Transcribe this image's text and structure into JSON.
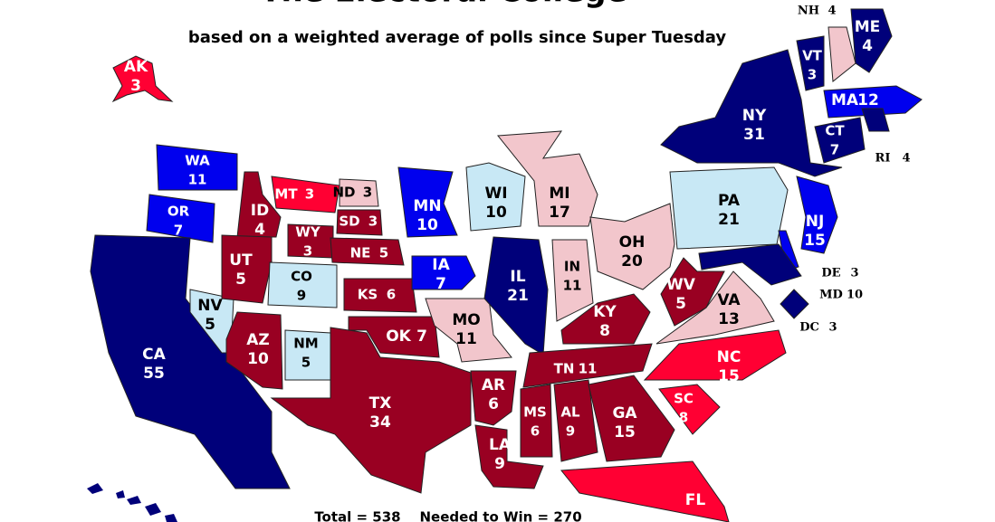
{
  "title": "The Electoral College",
  "subtitle": "based on a weighted average of polls since Super Tuesday",
  "footer": "Total = 538    Needed to Win = 270",
  "states": [
    {
      "abbr": "AK",
      "votes": 3,
      "color": "#ff0033"
    },
    {
      "abbr": "WA",
      "votes": 11,
      "color": "#0000ee"
    },
    {
      "abbr": "OR",
      "votes": 7,
      "color": "#0000ee"
    },
    {
      "abbr": "CA",
      "votes": 55,
      "color": "#00007a"
    },
    {
      "abbr": "NV",
      "votes": 5,
      "color": "#c8e8f5"
    },
    {
      "abbr": "ID",
      "votes": 4,
      "color": "#990022"
    },
    {
      "abbr": "MT",
      "votes": 3,
      "color": "#ff0033"
    },
    {
      "abbr": "WY",
      "votes": 3,
      "color": "#990022"
    },
    {
      "abbr": "UT",
      "votes": 5,
      "color": "#990022"
    },
    {
      "abbr": "CO",
      "votes": 9,
      "color": "#c8e8f5"
    },
    {
      "abbr": "AZ",
      "votes": 10,
      "color": "#990022"
    },
    {
      "abbr": "NM",
      "votes": 5,
      "color": "#c8e8f5"
    },
    {
      "abbr": "ND",
      "votes": 3,
      "color": "#f2c6cc"
    },
    {
      "abbr": "SD",
      "votes": 3,
      "color": "#990022"
    },
    {
      "abbr": "NE",
      "votes": 5,
      "color": "#990022"
    },
    {
      "abbr": "KS",
      "votes": 6,
      "color": "#990022"
    },
    {
      "abbr": "OK",
      "votes": 7,
      "color": "#990022"
    },
    {
      "abbr": "TX",
      "votes": 34,
      "color": "#990022"
    },
    {
      "abbr": "MN",
      "votes": 10,
      "color": "#0000ee"
    },
    {
      "abbr": "IA",
      "votes": 7,
      "color": "#0000ee"
    },
    {
      "abbr": "MO",
      "votes": 11,
      "color": "#f2c6cc"
    },
    {
      "abbr": "AR",
      "votes": 6,
      "color": "#990022"
    },
    {
      "abbr": "LA",
      "votes": 9,
      "color": "#990022"
    },
    {
      "abbr": "WI",
      "votes": 10,
      "color": "#c8e8f5"
    },
    {
      "abbr": "IL",
      "votes": 21,
      "color": "#00007a"
    },
    {
      "abbr": "MI",
      "votes": 17,
      "color": "#f2c6cc"
    },
    {
      "abbr": "IN",
      "votes": 11,
      "color": "#f2c6cc"
    },
    {
      "abbr": "OH",
      "votes": 20,
      "color": "#f2c6cc"
    },
    {
      "abbr": "KY",
      "votes": 8,
      "color": "#990022"
    },
    {
      "abbr": "TN",
      "votes": 11,
      "color": "#990022"
    },
    {
      "abbr": "MS",
      "votes": 6,
      "color": "#990022"
    },
    {
      "abbr": "AL",
      "votes": 9,
      "color": "#990022"
    },
    {
      "abbr": "GA",
      "votes": 15,
      "color": "#990022"
    },
    {
      "abbr": "FL",
      "votes": null,
      "color": "#ff0033"
    },
    {
      "abbr": "SC",
      "votes": 8,
      "color": "#ff0033"
    },
    {
      "abbr": "NC",
      "votes": 15,
      "color": "#ff0033"
    },
    {
      "abbr": "VA",
      "votes": 13,
      "color": "#f2c6cc"
    },
    {
      "abbr": "WV",
      "votes": 5,
      "color": "#990022"
    },
    {
      "abbr": "PA",
      "votes": 21,
      "color": "#c8e8f5"
    },
    {
      "abbr": "NJ",
      "votes": 15,
      "color": "#0000ee"
    },
    {
      "abbr": "DE",
      "votes": 3,
      "color": "#0000ee"
    },
    {
      "abbr": "MD",
      "votes": 10,
      "color": "#00007a"
    },
    {
      "abbr": "DC",
      "votes": 3,
      "color": "#00007a"
    },
    {
      "abbr": "NY",
      "votes": 31,
      "color": "#00007a"
    },
    {
      "abbr": "VT",
      "votes": 3,
      "color": "#00007a"
    },
    {
      "abbr": "NH",
      "votes": 4,
      "color": "#f2c6cc"
    },
    {
      "abbr": "ME",
      "votes": 4,
      "color": "#00007a"
    },
    {
      "abbr": "MA",
      "votes": 12,
      "color": "#0000ee"
    },
    {
      "abbr": "CT",
      "votes": 7,
      "color": "#00007a"
    },
    {
      "abbr": "RI",
      "votes": 4,
      "color": "#00007a"
    }
  ]
}
